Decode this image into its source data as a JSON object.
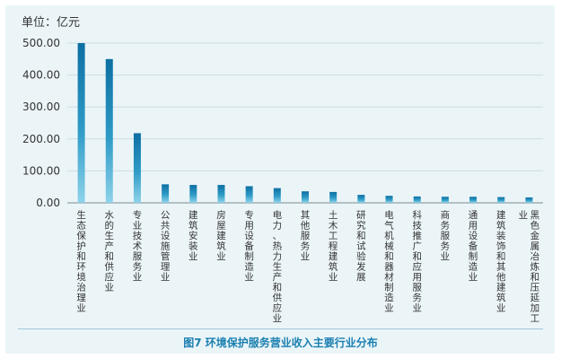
{
  "chart_data": {
    "type": "bar",
    "unit_label": "单位：亿元",
    "caption": "图7  环境保护服务营业收入主要行业分布",
    "categories": [
      "生态保护和环境治理业",
      "水的生产和供应业",
      "专业技术服务业",
      "公共设施管理业",
      "建筑安装业",
      "房屋建筑业",
      "专用设备制造业",
      "电力、热力生产和供应业",
      "其他服务业",
      "土木工程建筑业",
      "研究和试验发展",
      "电气机械和器材制造业",
      "科技推广和应用服务业",
      "商务服务业",
      "通用设备制造业",
      "建筑装饰和其他建筑业",
      "黑色金属冶炼和压延加工业"
    ],
    "values": [
      500,
      450,
      218,
      58,
      56,
      56,
      52,
      46,
      36,
      34,
      25,
      22,
      20,
      19,
      19,
      18,
      17
    ],
    "yticks": [
      "0.00",
      "100.00",
      "200.00",
      "300.00",
      "400.00",
      "500.00"
    ],
    "ylim": [
      0,
      500
    ],
    "bar_color_top": "#0d6fa3",
    "bar_color_bottom": "#8fd3ea"
  }
}
